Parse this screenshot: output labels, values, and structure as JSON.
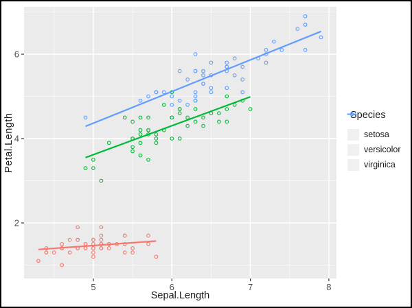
{
  "chart_data": {
    "type": "scatter",
    "title": "",
    "xlabel": "Sepal.Length",
    "ylabel": "Petal.Length",
    "xlim": [
      4.117,
      8.097
    ],
    "ylim": [
      0.683,
      7.122
    ],
    "x_ticks": [
      5,
      6,
      7,
      8
    ],
    "x_minor_ticks": [
      4.5,
      5.5,
      6.5,
      7.5
    ],
    "y_ticks": [
      2,
      4,
      6
    ],
    "y_minor_ticks": [
      1,
      3,
      5,
      7
    ],
    "grid": true,
    "panel_bg": "#EBEBEB",
    "grid_major_color": "#FFFFFF",
    "grid_minor_color": "#FFFFFF",
    "marker": "open-circle",
    "legend": {
      "title": "Species",
      "position": "right"
    },
    "series": [
      {
        "name": "setosa",
        "color": "#F8766D",
        "trend": {
          "x": [
            4.3,
            5.8
          ],
          "y": [
            1.37,
            1.57
          ]
        },
        "points": [
          [
            5.1,
            1.4
          ],
          [
            4.9,
            1.4
          ],
          [
            4.7,
            1.3
          ],
          [
            4.6,
            1.5
          ],
          [
            5.0,
            1.4
          ],
          [
            5.4,
            1.7
          ],
          [
            4.6,
            1.4
          ],
          [
            5.0,
            1.5
          ],
          [
            4.4,
            1.4
          ],
          [
            4.9,
            1.5
          ],
          [
            5.4,
            1.5
          ],
          [
            4.8,
            1.6
          ],
          [
            4.8,
            1.4
          ],
          [
            4.3,
            1.1
          ],
          [
            5.8,
            1.2
          ],
          [
            5.7,
            1.5
          ],
          [
            5.4,
            1.3
          ],
          [
            5.1,
            1.4
          ],
          [
            5.7,
            1.7
          ],
          [
            5.1,
            1.5
          ],
          [
            5.4,
            1.7
          ],
          [
            5.1,
            1.5
          ],
          [
            4.6,
            1.0
          ],
          [
            5.1,
            1.7
          ],
          [
            4.8,
            1.9
          ],
          [
            5.0,
            1.6
          ],
          [
            5.0,
            1.6
          ],
          [
            5.2,
            1.5
          ],
          [
            5.2,
            1.4
          ],
          [
            4.7,
            1.6
          ],
          [
            4.8,
            1.6
          ],
          [
            5.4,
            1.5
          ],
          [
            5.2,
            1.5
          ],
          [
            5.5,
            1.4
          ],
          [
            4.9,
            1.5
          ],
          [
            5.0,
            1.2
          ],
          [
            5.5,
            1.3
          ],
          [
            4.9,
            1.4
          ],
          [
            4.4,
            1.3
          ],
          [
            5.1,
            1.5
          ],
          [
            5.0,
            1.3
          ],
          [
            4.5,
            1.3
          ],
          [
            4.4,
            1.3
          ],
          [
            5.0,
            1.6
          ],
          [
            5.1,
            1.9
          ],
          [
            4.8,
            1.4
          ],
          [
            5.1,
            1.6
          ],
          [
            4.6,
            1.4
          ],
          [
            5.3,
            1.5
          ],
          [
            5.0,
            1.4
          ]
        ]
      },
      {
        "name": "versicolor",
        "color": "#00BA38",
        "trend": {
          "x": [
            4.9,
            7.0
          ],
          "y": [
            3.55,
            4.99
          ]
        },
        "points": [
          [
            7.0,
            4.7
          ],
          [
            6.4,
            4.5
          ],
          [
            6.9,
            4.9
          ],
          [
            5.5,
            4.0
          ],
          [
            6.5,
            4.6
          ],
          [
            5.7,
            4.5
          ],
          [
            6.3,
            4.7
          ],
          [
            4.9,
            3.3
          ],
          [
            6.6,
            4.6
          ],
          [
            5.2,
            3.9
          ],
          [
            5.0,
            3.5
          ],
          [
            5.9,
            4.2
          ],
          [
            6.0,
            4.0
          ],
          [
            6.1,
            4.7
          ],
          [
            5.6,
            3.6
          ],
          [
            6.7,
            4.4
          ],
          [
            5.6,
            4.5
          ],
          [
            5.8,
            4.1
          ],
          [
            6.2,
            4.5
          ],
          [
            5.6,
            3.9
          ],
          [
            5.9,
            4.8
          ],
          [
            6.1,
            4.0
          ],
          [
            6.3,
            4.9
          ],
          [
            6.1,
            4.7
          ],
          [
            6.4,
            4.3
          ],
          [
            6.6,
            4.4
          ],
          [
            6.8,
            4.8
          ],
          [
            6.7,
            5.0
          ],
          [
            6.0,
            4.5
          ],
          [
            5.7,
            3.5
          ],
          [
            5.5,
            3.8
          ],
          [
            5.5,
            3.7
          ],
          [
            5.8,
            3.9
          ],
          [
            6.0,
            5.1
          ],
          [
            5.4,
            4.5
          ],
          [
            6.0,
            4.5
          ],
          [
            6.7,
            4.7
          ],
          [
            6.3,
            4.4
          ],
          [
            5.6,
            4.1
          ],
          [
            5.5,
            4.0
          ],
          [
            5.5,
            4.4
          ],
          [
            6.1,
            4.6
          ],
          [
            5.8,
            4.0
          ],
          [
            5.0,
            3.3
          ],
          [
            5.6,
            4.2
          ],
          [
            5.7,
            4.2
          ],
          [
            5.7,
            4.2
          ],
          [
            6.2,
            4.3
          ],
          [
            5.1,
            3.0
          ],
          [
            5.7,
            4.1
          ]
        ]
      },
      {
        "name": "virginica",
        "color": "#619CFF",
        "trend": {
          "x": [
            4.9,
            7.9
          ],
          "y": [
            4.29,
            6.54
          ]
        },
        "points": [
          [
            6.3,
            6.0
          ],
          [
            5.8,
            5.1
          ],
          [
            7.1,
            5.9
          ],
          [
            6.3,
            5.6
          ],
          [
            6.5,
            5.8
          ],
          [
            7.6,
            6.6
          ],
          [
            4.9,
            4.5
          ],
          [
            7.3,
            6.3
          ],
          [
            6.7,
            5.8
          ],
          [
            7.2,
            6.1
          ],
          [
            6.5,
            5.1
          ],
          [
            6.4,
            5.3
          ],
          [
            6.8,
            5.5
          ],
          [
            5.7,
            5.0
          ],
          [
            5.8,
            5.1
          ],
          [
            6.4,
            5.3
          ],
          [
            6.5,
            5.5
          ],
          [
            7.7,
            6.7
          ],
          [
            7.7,
            6.9
          ],
          [
            6.0,
            5.0
          ],
          [
            6.9,
            5.7
          ],
          [
            5.6,
            4.9
          ],
          [
            7.7,
            6.7
          ],
          [
            6.3,
            4.9
          ],
          [
            6.7,
            5.7
          ],
          [
            7.2,
            6.0
          ],
          [
            6.2,
            4.8
          ],
          [
            6.1,
            4.9
          ],
          [
            6.4,
            5.6
          ],
          [
            7.2,
            5.8
          ],
          [
            7.4,
            6.1
          ],
          [
            7.9,
            6.4
          ],
          [
            6.4,
            5.6
          ],
          [
            6.3,
            5.1
          ],
          [
            6.1,
            5.6
          ],
          [
            7.7,
            6.1
          ],
          [
            6.3,
            5.6
          ],
          [
            6.4,
            5.5
          ],
          [
            6.0,
            4.8
          ],
          [
            6.9,
            5.4
          ],
          [
            6.7,
            5.6
          ],
          [
            6.9,
            5.1
          ],
          [
            5.8,
            5.1
          ],
          [
            6.8,
            5.9
          ],
          [
            6.7,
            5.7
          ],
          [
            6.7,
            5.2
          ],
          [
            6.3,
            5.0
          ],
          [
            6.5,
            5.2
          ],
          [
            6.2,
            5.4
          ],
          [
            5.9,
            5.1
          ]
        ]
      }
    ]
  }
}
